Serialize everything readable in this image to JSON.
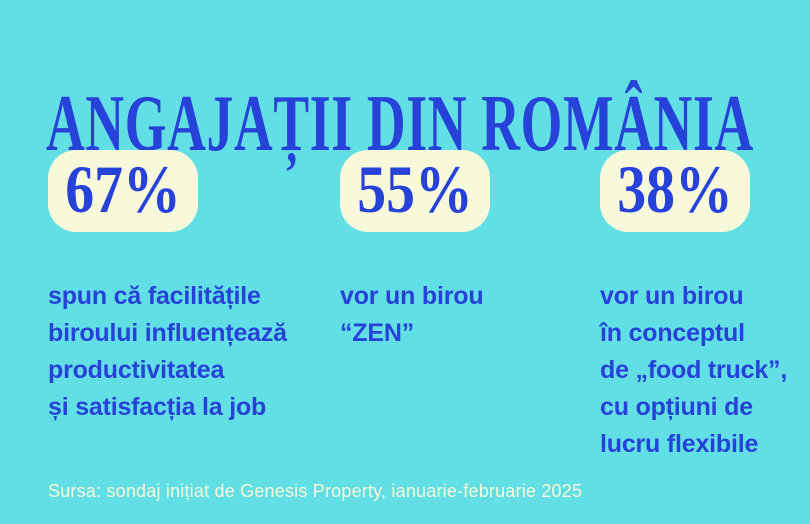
{
  "title": "ANGAJAȚII DIN ROMÂNIA",
  "stats": [
    {
      "value": "67%",
      "description": "spun că facilitățile\nbiroului influențează\nproductivitatea\nși satisfacția la job"
    },
    {
      "value": "55%",
      "description": "vor un birou\n“ZEN”"
    },
    {
      "value": "38%",
      "description": "vor un birou\nîn conceptul\nde „food truck”,\ncu opțiuni de\nlucru flexibile"
    }
  ],
  "source": "Sursa: sondaj inițiat de Genesis Property, ianuarie-februarie 2025",
  "colors": {
    "background": "#61DFE4",
    "primary_blue": "#2642D9",
    "card_cream": "#F8F8DA"
  },
  "chart_data": {
    "type": "table",
    "title": "ANGAJAȚII DIN ROMÂNIA",
    "categories": [
      "spun că facilitățile biroului influențează productivitatea și satisfacția la job",
      "vor un birou “ZEN”",
      "vor un birou în conceptul de „food truck”, cu opțiuni de lucru flexibile"
    ],
    "values": [
      67,
      55,
      38
    ],
    "unit": "%",
    "source": "Sursa: sondaj inițiat de Genesis Property, ianuarie-februarie 2025",
    "legend_position": "none",
    "grid": false
  }
}
